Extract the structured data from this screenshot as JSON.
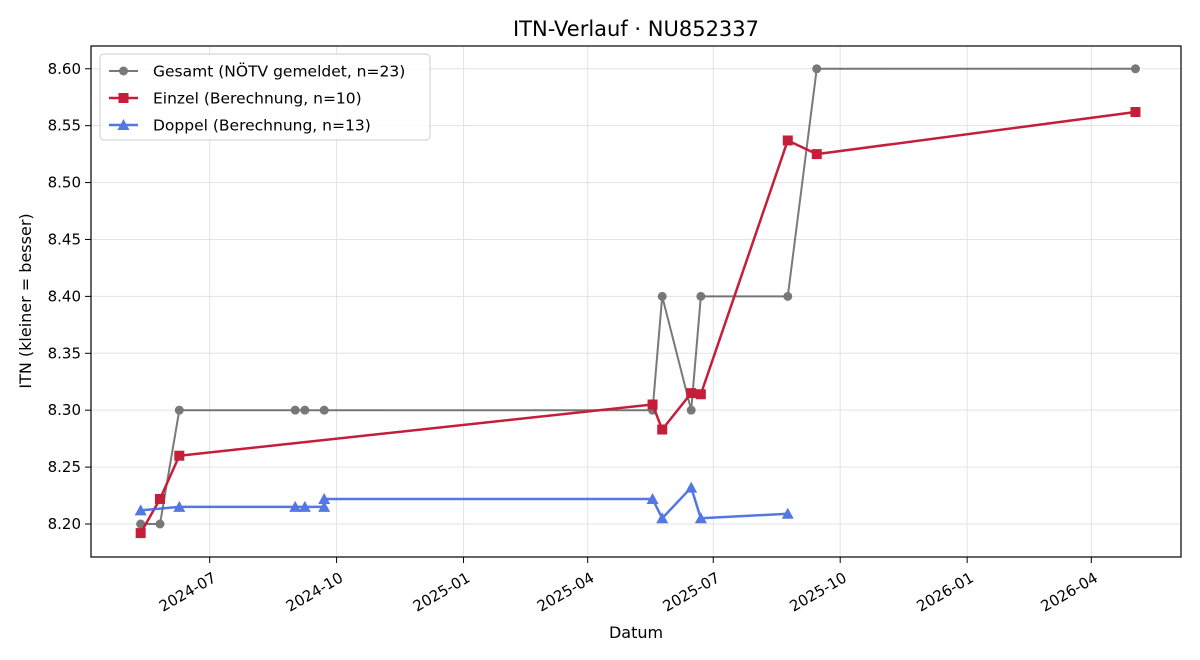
{
  "chart_data": {
    "type": "line",
    "title": "ITN-Verlauf · NU852337",
    "xlabel": "Datum",
    "ylabel": "ITN  (kleiner = besser)",
    "xlim": [
      "2024-04-06",
      "2026-06-05"
    ],
    "ylim": [
      8.171,
      8.62
    ],
    "x_ticks": [
      "2024-07",
      "2024-10",
      "2025-01",
      "2025-04",
      "2025-07",
      "2025-10",
      "2026-01",
      "2026-04"
    ],
    "y_ticks": [
      "8.20",
      "8.25",
      "8.30",
      "8.35",
      "8.40",
      "8.45",
      "8.50",
      "8.55",
      "8.60"
    ],
    "grid": true,
    "legend_position": "top-left",
    "series": [
      {
        "name": "Gesamt (NÖTV gemeldet, n=23)",
        "color": "#4d4d4d",
        "marker": "circle",
        "points": [
          {
            "x": "2024-05-12",
            "y": 8.2
          },
          {
            "x": "2024-05-26",
            "y": 8.2
          },
          {
            "x": "2024-06-09",
            "y": 8.3
          },
          {
            "x": "2024-09-01",
            "y": 8.3
          },
          {
            "x": "2024-09-08",
            "y": 8.3
          },
          {
            "x": "2024-09-22",
            "y": 8.3
          },
          {
            "x": "2025-05-18",
            "y": 8.3
          },
          {
            "x": "2025-05-25",
            "y": 8.4
          },
          {
            "x": "2025-06-15",
            "y": 8.3
          },
          {
            "x": "2025-06-22",
            "y": 8.4
          },
          {
            "x": "2025-08-24",
            "y": 8.4
          },
          {
            "x": "2025-09-14",
            "y": 8.6
          },
          {
            "x": "2026-05-03",
            "y": 8.6
          }
        ]
      },
      {
        "name": "Einzel (Berechnung, n=10)",
        "color": "#c41e3a",
        "marker": "square",
        "points": [
          {
            "x": "2024-05-12",
            "y": 8.192
          },
          {
            "x": "2024-05-26",
            "y": 8.222
          },
          {
            "x": "2024-06-09",
            "y": 8.26
          },
          {
            "x": "2025-05-18",
            "y": 8.305
          },
          {
            "x": "2025-05-25",
            "y": 8.283
          },
          {
            "x": "2025-06-15",
            "y": 8.315
          },
          {
            "x": "2025-06-22",
            "y": 8.314
          },
          {
            "x": "2025-08-24",
            "y": 8.537
          },
          {
            "x": "2025-09-14",
            "y": 8.525
          },
          {
            "x": "2026-05-03",
            "y": 8.562
          }
        ]
      },
      {
        "name": "Doppel (Berechnung, n=13)",
        "color": "#4169e1",
        "marker": "triangle",
        "points": [
          {
            "x": "2024-05-12",
            "y": 8.212
          },
          {
            "x": "2024-06-09",
            "y": 8.215
          },
          {
            "x": "2024-09-01",
            "y": 8.215
          },
          {
            "x": "2024-09-08",
            "y": 8.215
          },
          {
            "x": "2024-09-22",
            "y": 8.215
          },
          {
            "x": "2024-09-22",
            "y": 8.222
          },
          {
            "x": "2025-05-18",
            "y": 8.222
          },
          {
            "x": "2025-05-25",
            "y": 8.205
          },
          {
            "x": "2025-06-15",
            "y": 8.232
          },
          {
            "x": "2025-06-22",
            "y": 8.205
          },
          {
            "x": "2025-08-24",
            "y": 8.209
          }
        ]
      }
    ]
  }
}
